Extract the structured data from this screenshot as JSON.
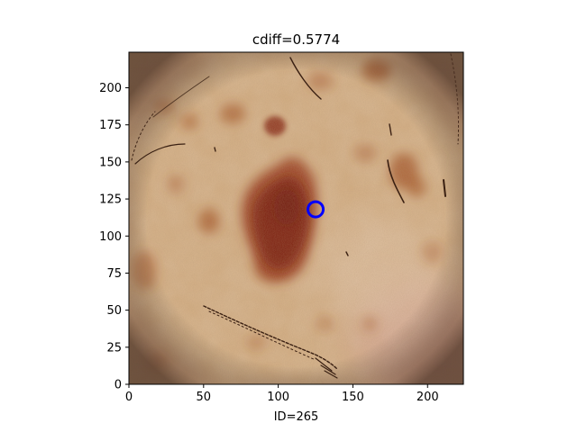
{
  "chart_data": {
    "type": "image",
    "title": "cdiff=0.5774",
    "xlabel": "ID=265",
    "ylabel": "",
    "xlim": [
      0,
      224
    ],
    "ylim": [
      0,
      224
    ],
    "x_ticks": [
      0,
      50,
      100,
      150,
      200
    ],
    "y_ticks": [
      0,
      25,
      50,
      75,
      100,
      125,
      150,
      175,
      200
    ],
    "marker": {
      "shape": "circle",
      "x": 125,
      "y": 118,
      "color": "#0000ff"
    },
    "image_content": "dermoscopy-lesion",
    "colors": {
      "background": "#d8b68f",
      "lesion_core": "#7a1c0d",
      "lesion_mid": "#9a3a1c",
      "spots": "#a8582a",
      "vignette": "#8a6a5a",
      "hair": "#3a2012",
      "pink_tint": "#d9a8a0"
    }
  }
}
